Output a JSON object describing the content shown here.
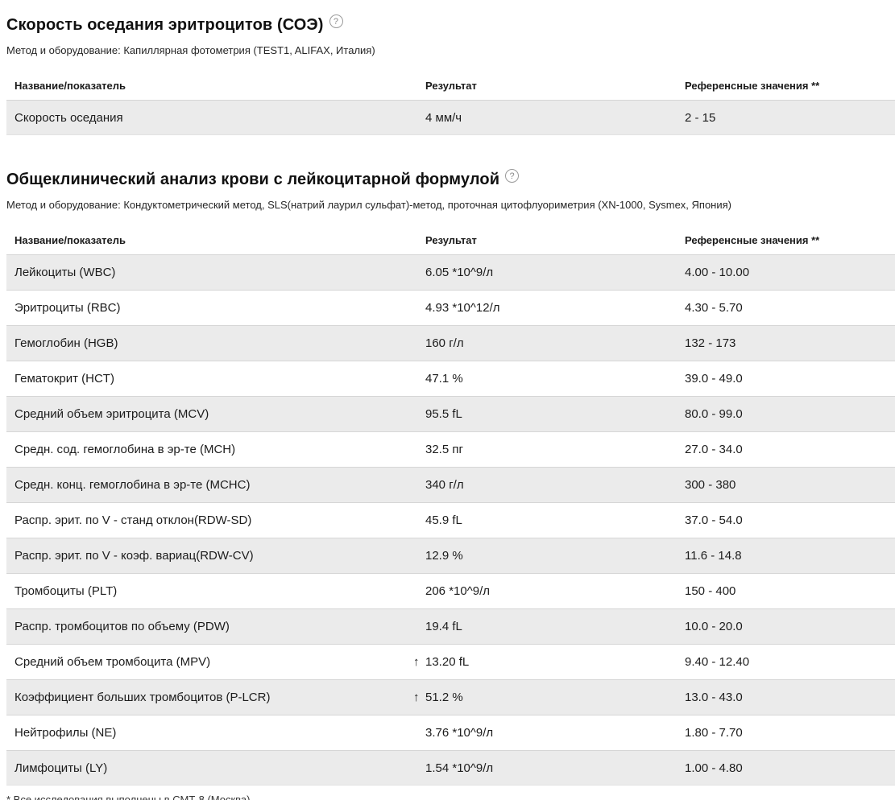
{
  "icons": {
    "help_glyph": "?",
    "high_arrow": "↑"
  },
  "colors": {
    "row_stripe": "#ebebeb",
    "row_border": "#d6d6d6",
    "text": "#1a1a1a",
    "help_icon": "#8a8a8a"
  },
  "sections": [
    {
      "title": "Скорость оседания эритроцитов (СОЭ)",
      "method": "Метод и оборудование: Капиллярная фотометрия (TEST1, ALIFAX, Италия)",
      "table": {
        "headers": [
          "Название/показатель",
          "Результат",
          "Референсные значения **"
        ],
        "rows": [
          {
            "name": "Скорость оседания",
            "flag": "",
            "result": "4 мм/ч",
            "reference": "2 - 15"
          }
        ]
      }
    },
    {
      "title": "Общеклинический анализ крови с лейкоцитарной формулой",
      "method": "Метод и оборудование: Кондуктометрический метод, SLS(натрий лаурил сульфат)-метод, проточная цитофлуориметрия (XN-1000, Sysmex, Япония)",
      "table": {
        "headers": [
          "Название/показатель",
          "Результат",
          "Референсные значения **"
        ],
        "rows": [
          {
            "name": "Лейкоциты (WBC)",
            "flag": "",
            "result": "6.05 *10^9/л",
            "reference": "4.00 - 10.00"
          },
          {
            "name": "Эритроциты (RBC)",
            "flag": "",
            "result": "4.93 *10^12/л",
            "reference": "4.30 - 5.70"
          },
          {
            "name": "Гемоглобин (HGB)",
            "flag": "",
            "result": "160 г/л",
            "reference": "132 - 173"
          },
          {
            "name": "Гематокрит (HCT)",
            "flag": "",
            "result": "47.1 %",
            "reference": "39.0 - 49.0"
          },
          {
            "name": "Средний объем эритроцита (MCV)",
            "flag": "",
            "result": "95.5 fL",
            "reference": "80.0 - 99.0"
          },
          {
            "name": "Средн. сод. гемоглобина в эр-те (MCH)",
            "flag": "",
            "result": "32.5 пг",
            "reference": "27.0 - 34.0"
          },
          {
            "name": "Средн. конц. гемоглобина в эр-те (MCHC)",
            "flag": "",
            "result": "340 г/л",
            "reference": "300 - 380"
          },
          {
            "name": "Распр. эрит. по V - станд отклон(RDW-SD)",
            "flag": "",
            "result": "45.9 fL",
            "reference": "37.0 - 54.0"
          },
          {
            "name": "Распр. эрит. по V - коэф. вариац(RDW-CV)",
            "flag": "",
            "result": "12.9 %",
            "reference": "11.6 - 14.8"
          },
          {
            "name": "Тромбоциты (PLT)",
            "flag": "",
            "result": "206 *10^9/л",
            "reference": "150 - 400"
          },
          {
            "name": "Распр. тромбоцитов по объему (PDW)",
            "flag": "",
            "result": "19.4 fL",
            "reference": "10.0 - 20.0"
          },
          {
            "name": "Средний объем тромбоцита (MPV)",
            "flag": "↑",
            "result": "13.20 fL",
            "reference": "9.40 - 12.40"
          },
          {
            "name": "Коэффициент больших тромбоцитов (P-LCR)",
            "flag": "↑",
            "result": "51.2 %",
            "reference": "13.0 - 43.0"
          },
          {
            "name": "Нейтрофилы (NE)",
            "flag": "",
            "result": "3.76 *10^9/л",
            "reference": "1.80 - 7.70"
          },
          {
            "name": "Лимфоциты (LY)",
            "flag": "",
            "result": "1.54 *10^9/л",
            "reference": "1.00 - 4.80"
          }
        ]
      }
    }
  ],
  "footer": {
    "note": "* Все исследования выполнены в СМТ-8 (Москва)"
  }
}
